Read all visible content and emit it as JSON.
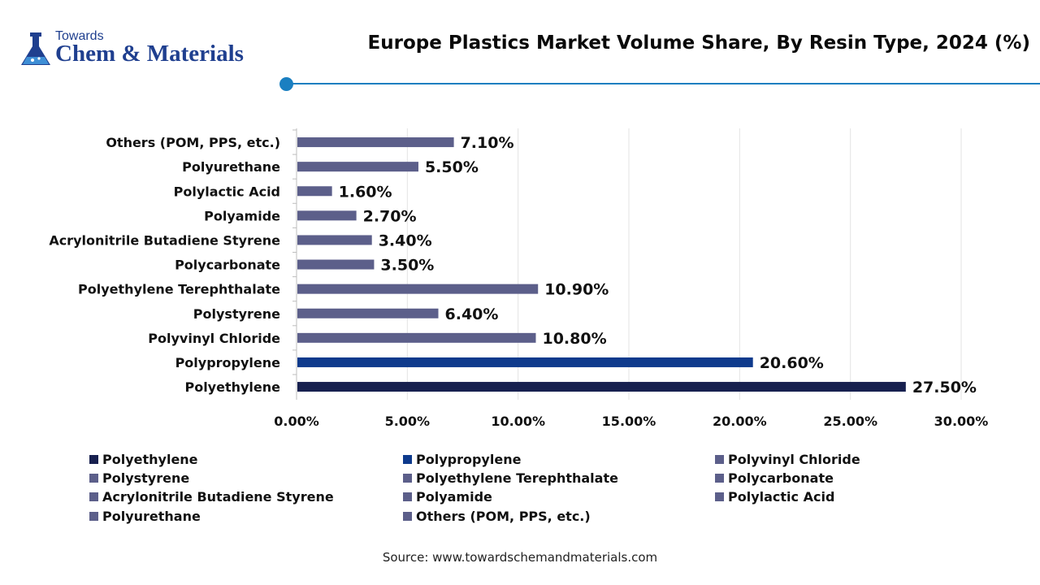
{
  "logo": {
    "line1": "Towards",
    "line2": "Chem & Materials"
  },
  "source": "Source: www.towardschemandmaterials.com",
  "colors": {
    "accent": "#1a7fc1",
    "polyethylene": "#17204f",
    "polypropylene": "#0e3a8c",
    "others": "#5c5f8a"
  },
  "chart_data": {
    "type": "bar",
    "orientation": "horizontal",
    "title": "Europe Plastics Market Volume Share, By Resin Type, 2024 (%)",
    "xlabel": "",
    "ylabel": "",
    "xlim": [
      0,
      30
    ],
    "xticks": [
      "0.00%",
      "5.00%",
      "10.00%",
      "15.00%",
      "20.00%",
      "25.00%",
      "30.00%"
    ],
    "grid": "vertical",
    "legend_placement": "bottom",
    "categories": [
      "Polyethylene",
      "Polypropylene",
      "Polyvinyl Chloride",
      "Polystyrene",
      "Polyethylene Terephthalate",
      "Polycarbonate",
      "Acrylonitrile Butadiene Styrene",
      "Polyamide",
      "Polylactic Acid",
      "Polyurethane",
      "Others (POM, PPS, etc.)"
    ],
    "values": [
      27.5,
      20.6,
      10.8,
      6.4,
      10.9,
      3.5,
      3.4,
      2.7,
      1.6,
      5.5,
      7.1
    ],
    "value_labels": [
      "27.50%",
      "20.60%",
      "10.80%",
      "6.40%",
      "10.90%",
      "3.50%",
      "3.40%",
      "2.70%",
      "1.60%",
      "5.50%",
      "7.10%"
    ],
    "bar_colors": [
      "#17204f",
      "#0e3a8c",
      "#5c5f8a",
      "#5c5f8a",
      "#5c5f8a",
      "#5c5f8a",
      "#5c5f8a",
      "#5c5f8a",
      "#5c5f8a",
      "#5c5f8a",
      "#5c5f8a"
    ]
  }
}
